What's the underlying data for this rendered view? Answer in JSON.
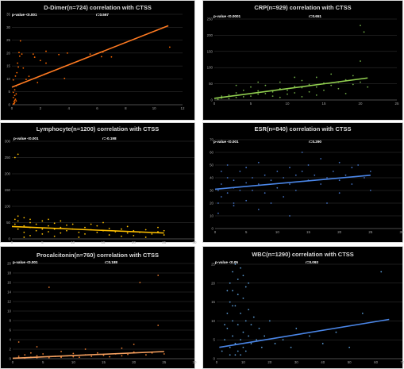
{
  "chart_data": [
    {
      "type": "scatter",
      "title": "D-Dimer(n=724) correlation with CTSS",
      "p_value": "p-value <0.001",
      "r_value": "r=0.567",
      "xlim": [
        0,
        12
      ],
      "ylim": [
        0,
        35
      ],
      "xticks": [
        0,
        2,
        4,
        6,
        8,
        10,
        12
      ],
      "yticks": [
        0,
        5,
        10,
        15,
        20,
        25,
        30,
        35
      ],
      "grid": true,
      "point_color": "#ff6a00",
      "trend_color": "#ff7a21",
      "trendline": {
        "x": [
          0,
          11
        ],
        "y": [
          6.8,
          30.6
        ]
      },
      "points": [
        [
          0.1,
          0.3
        ],
        [
          0.15,
          1.2
        ],
        [
          0.2,
          0.8
        ],
        [
          0.25,
          2.1
        ],
        [
          0.3,
          1.5
        ],
        [
          0.1,
          2.8
        ],
        [
          0.2,
          3.6
        ],
        [
          0.3,
          4.2
        ],
        [
          0.2,
          5.8
        ],
        [
          0.3,
          7.3
        ],
        [
          0.1,
          9.6
        ],
        [
          0.25,
          11.1
        ],
        [
          0.35,
          12.4
        ],
        [
          0.4,
          16.1
        ],
        [
          0.5,
          20.2
        ],
        [
          0.6,
          24.7
        ],
        [
          0.7,
          19.6
        ],
        [
          0.8,
          14.2
        ],
        [
          1.0,
          9.8
        ],
        [
          1.2,
          11.0
        ],
        [
          1.5,
          19.6
        ],
        [
          1.6,
          18.4
        ],
        [
          1.8,
          8.6
        ],
        [
          2.3,
          11.8
        ],
        [
          2.4,
          16.1
        ],
        [
          0.15,
          0.4
        ],
        [
          0.2,
          1.7
        ],
        [
          0.1,
          4.8
        ],
        [
          3.3,
          19.4
        ],
        [
          3.7,
          10.2
        ],
        [
          3.9,
          20.0
        ],
        [
          5.5,
          19.6
        ],
        [
          6.3,
          18.6
        ],
        [
          6.4,
          20.4
        ],
        [
          7.0,
          18.5
        ],
        [
          11.1,
          22.3
        ],
        [
          0.45,
          14.6
        ],
        [
          0.55,
          18.8
        ],
        [
          2.0,
          17.1
        ],
        [
          2.4,
          20.7
        ]
      ]
    },
    {
      "type": "scatter",
      "title": "CRP(n=929) correlation with CTSS",
      "p_value": "p-value <0.0001",
      "r_value": "r=0.651",
      "xlim": [
        0,
        25
      ],
      "ylim": [
        0,
        250
      ],
      "xticks": [
        0,
        5,
        10,
        15,
        20,
        25
      ],
      "yticks": [
        0,
        50,
        100,
        150,
        200,
        250
      ],
      "grid": true,
      "point_color": "#70ad47",
      "trend_color": "#92d050",
      "trendline": {
        "x": [
          0,
          21
        ],
        "y": [
          5,
          68
        ]
      },
      "points": [
        [
          0.5,
          2
        ],
        [
          1,
          6
        ],
        [
          1,
          12
        ],
        [
          2,
          4
        ],
        [
          2,
          15
        ],
        [
          3,
          8
        ],
        [
          3,
          22
        ],
        [
          4,
          10
        ],
        [
          4,
          30
        ],
        [
          5,
          12
        ],
        [
          5,
          40
        ],
        [
          6,
          18
        ],
        [
          6,
          28
        ],
        [
          7,
          20
        ],
        [
          7,
          45
        ],
        [
          8,
          25
        ],
        [
          8,
          12
        ],
        [
          9,
          35
        ],
        [
          9,
          55
        ],
        [
          10,
          30
        ],
        [
          10,
          18
        ],
        [
          11,
          42
        ],
        [
          11,
          22
        ],
        [
          12,
          38
        ],
        [
          12,
          60
        ],
        [
          13,
          25
        ],
        [
          13,
          48
        ],
        [
          14,
          40
        ],
        [
          14,
          70
        ],
        [
          15,
          30
        ],
        [
          15,
          52
        ],
        [
          16,
          45
        ],
        [
          17,
          55
        ],
        [
          17,
          35
        ],
        [
          18,
          62
        ],
        [
          19,
          48
        ],
        [
          19,
          75
        ],
        [
          20,
          120
        ],
        [
          20,
          55
        ],
        [
          20,
          230
        ],
        [
          21,
          40
        ],
        [
          20.5,
          210
        ],
        [
          16,
          80
        ],
        [
          11,
          70
        ],
        [
          12,
          10
        ],
        [
          6,
          55
        ],
        [
          9,
          8
        ],
        [
          3,
          45
        ],
        [
          14,
          15
        ],
        [
          18,
          20
        ]
      ]
    },
    {
      "type": "scatter",
      "title": "Lymphocyte(n=1200) correlation with CTSS",
      "p_value": "p-value <0.001",
      "r_value": "r=-0.198",
      "xlim": [
        0,
        30
      ],
      "ylim": [
        0,
        300
      ],
      "xticks": [
        0,
        5,
        10,
        15,
        20,
        25,
        30
      ],
      "yticks": [
        0,
        50,
        100,
        150,
        200,
        250,
        300
      ],
      "grid": true,
      "point_color": "#ffc000",
      "trend_color": "#ffc000",
      "trendline": {
        "x": [
          0,
          25
        ],
        "y": [
          38,
          18
        ]
      },
      "points": [
        [
          0.5,
          60
        ],
        [
          0.5,
          45
        ],
        [
          1,
          70
        ],
        [
          1,
          30
        ],
        [
          1,
          55
        ],
        [
          2,
          40
        ],
        [
          2,
          65
        ],
        [
          2,
          20
        ],
        [
          3,
          50
        ],
        [
          3,
          35
        ],
        [
          3,
          60
        ],
        [
          4,
          25
        ],
        [
          4,
          45
        ],
        [
          5,
          55
        ],
        [
          5,
          30
        ],
        [
          5,
          15
        ],
        [
          6,
          40
        ],
        [
          6,
          22
        ],
        [
          7,
          48
        ],
        [
          7,
          30
        ],
        [
          8,
          35
        ],
        [
          8,
          18
        ],
        [
          9,
          42
        ],
        [
          9,
          25
        ],
        [
          10,
          30
        ],
        [
          10,
          45
        ],
        [
          11,
          20
        ],
        [
          12,
          35
        ],
        [
          12,
          15
        ],
        [
          13,
          28
        ],
        [
          14,
          40
        ],
        [
          14,
          20
        ],
        [
          15,
          25
        ],
        [
          16,
          32
        ],
        [
          16,
          12
        ],
        [
          17,
          22
        ],
        [
          18,
          30
        ],
        [
          19,
          18
        ],
        [
          20,
          25
        ],
        [
          20,
          10
        ],
        [
          21,
          20
        ],
        [
          22,
          28
        ],
        [
          23,
          15
        ],
        [
          24,
          22
        ],
        [
          25,
          12
        ],
        [
          25,
          25
        ],
        [
          1,
          260
        ],
        [
          0.5,
          250
        ],
        [
          8,
          55
        ],
        [
          15,
          50
        ],
        [
          3,
          10
        ],
        [
          7,
          8
        ],
        [
          11,
          5
        ],
        [
          18,
          8
        ],
        [
          22,
          5
        ],
        [
          2,
          5
        ],
        [
          6,
          60
        ],
        [
          13,
          45
        ],
        [
          19,
          38
        ],
        [
          24,
          35
        ]
      ]
    },
    {
      "type": "scatter",
      "title": "ESR(n=840) correlation with CTSS",
      "p_value": "p-value <0.001",
      "r_value": "r=0.290",
      "xlim": [
        0,
        30
      ],
      "ylim": [
        0,
        70
      ],
      "xticks": [
        0,
        5,
        10,
        15,
        20,
        25,
        30
      ],
      "yticks": [
        0,
        10,
        20,
        30,
        40,
        50,
        60,
        70
      ],
      "grid": true,
      "point_color": "#4472c4",
      "trend_color": "#4a86e8",
      "trendline": {
        "x": [
          0,
          25
        ],
        "y": [
          31,
          42
        ]
      },
      "points": [
        [
          0.5,
          30
        ],
        [
          0.5,
          20
        ],
        [
          1,
          35
        ],
        [
          1,
          45
        ],
        [
          1,
          25
        ],
        [
          2,
          40
        ],
        [
          2,
          28
        ],
        [
          2,
          50
        ],
        [
          3,
          32
        ],
        [
          3,
          20
        ],
        [
          3,
          38
        ],
        [
          4,
          45
        ],
        [
          4,
          30
        ],
        [
          5,
          36
        ],
        [
          5,
          22
        ],
        [
          5,
          48
        ],
        [
          6,
          40
        ],
        [
          6,
          30
        ],
        [
          7,
          35
        ],
        [
          7,
          52
        ],
        [
          8,
          28
        ],
        [
          8,
          42
        ],
        [
          9,
          38
        ],
        [
          9,
          20
        ],
        [
          10,
          45
        ],
        [
          10,
          32
        ],
        [
          11,
          40
        ],
        [
          11,
          25
        ],
        [
          12,
          48
        ],
        [
          12,
          35
        ],
        [
          13,
          42
        ],
        [
          13,
          30
        ],
        [
          14,
          45
        ],
        [
          14,
          60
        ],
        [
          15,
          38
        ],
        [
          15,
          50
        ],
        [
          16,
          42
        ],
        [
          17,
          35
        ],
        [
          17,
          55
        ],
        [
          18,
          40
        ],
        [
          18,
          20
        ],
        [
          19,
          45
        ],
        [
          20,
          38
        ],
        [
          20,
          52
        ],
        [
          21,
          42
        ],
        [
          22,
          48
        ],
        [
          22,
          35
        ],
        [
          23,
          50
        ],
        [
          24,
          40
        ],
        [
          25,
          45
        ],
        [
          25,
          30
        ],
        [
          0.5,
          12
        ],
        [
          3,
          18
        ],
        [
          7,
          15
        ],
        [
          12,
          10
        ],
        [
          20,
          28
        ]
      ]
    },
    {
      "type": "scatter",
      "title": "Procalcitonin(n=760) correlation with CTSS",
      "p_value": "p-value <0.001",
      "r_value": "r=0.188",
      "xlim": [
        0,
        30
      ],
      "ylim": [
        0,
        20
      ],
      "xticks": [
        0,
        5,
        10,
        15,
        20,
        25,
        30
      ],
      "yticks": [
        0,
        2,
        4,
        6,
        8,
        10,
        12,
        14,
        16,
        18,
        20
      ],
      "grid": true,
      "point_color": "#ed7d31",
      "trend_color": "#f4a060",
      "trendline": {
        "x": [
          0,
          25
        ],
        "y": [
          0.1,
          1.5
        ]
      },
      "points": [
        [
          0.5,
          0.1
        ],
        [
          1,
          0.2
        ],
        [
          1,
          0.5
        ],
        [
          2,
          0.1
        ],
        [
          2,
          0.8
        ],
        [
          3,
          0.3
        ],
        [
          3,
          1.2
        ],
        [
          4,
          0.2
        ],
        [
          4,
          0.6
        ],
        [
          5,
          0.4
        ],
        [
          5,
          1.0
        ],
        [
          6,
          0.2
        ],
        [
          7,
          0.5
        ],
        [
          8,
          0.3
        ],
        [
          8,
          1.5
        ],
        [
          9,
          0.6
        ],
        [
          10,
          0.4
        ],
        [
          10,
          1.1
        ],
        [
          11,
          0.3
        ],
        [
          12,
          0.8
        ],
        [
          13,
          0.5
        ],
        [
          14,
          1.2
        ],
        [
          15,
          0.7
        ],
        [
          16,
          0.4
        ],
        [
          17,
          1.0
        ],
        [
          18,
          0.6
        ],
        [
          19,
          0.9
        ],
        [
          20,
          1.4
        ],
        [
          20,
          3.0
        ],
        [
          21,
          16.0
        ],
        [
          22,
          0.8
        ],
        [
          23,
          1.2
        ],
        [
          24,
          7.0
        ],
        [
          24,
          17.5
        ],
        [
          25,
          1.0
        ],
        [
          6,
          15.0
        ],
        [
          1,
          3.5
        ],
        [
          4,
          2.5
        ],
        [
          12,
          2.0
        ],
        [
          18,
          2.2
        ]
      ]
    },
    {
      "type": "scatter",
      "title": "WBC(n=1290) correlation with CTSS",
      "p_value": "p-value <0.05",
      "r_value": "r=0.093",
      "xlim": [
        0,
        70
      ],
      "ylim": [
        0,
        25
      ],
      "xticks": [
        0,
        10,
        20,
        30,
        40,
        50,
        60,
        70
      ],
      "yticks": [
        0,
        5,
        10,
        15,
        20,
        25
      ],
      "grid": true,
      "point_color": "#5b9bd5",
      "trend_color": "#4a86e8",
      "trendline": {
        "x": [
          1,
          65
        ],
        "y": [
          3.0,
          10.4
        ]
      },
      "points": [
        [
          2,
          2
        ],
        [
          3,
          5
        ],
        [
          4,
          8
        ],
        [
          4,
          12
        ],
        [
          5,
          3
        ],
        [
          5,
          15
        ],
        [
          5,
          20
        ],
        [
          6,
          6
        ],
        [
          6,
          10
        ],
        [
          6,
          18
        ],
        [
          6,
          23
        ],
        [
          7,
          4
        ],
        [
          7,
          14
        ],
        [
          7,
          25
        ],
        [
          8,
          2
        ],
        [
          8,
          9
        ],
        [
          8,
          17
        ],
        [
          8,
          21
        ],
        [
          9,
          5
        ],
        [
          9,
          12
        ],
        [
          9,
          24
        ],
        [
          10,
          7
        ],
        [
          10,
          16
        ],
        [
          10,
          3
        ],
        [
          11,
          10
        ],
        [
          11,
          19
        ],
        [
          12,
          6
        ],
        [
          12,
          13
        ],
        [
          13,
          4
        ],
        [
          13,
          9
        ],
        [
          14,
          11
        ],
        [
          15,
          5
        ],
        [
          16,
          8
        ],
        [
          17,
          3
        ],
        [
          18,
          6
        ],
        [
          20,
          10
        ],
        [
          22,
          4
        ],
        [
          25,
          5
        ],
        [
          28,
          3
        ],
        [
          30,
          8
        ],
        [
          35,
          6
        ],
        [
          40,
          4
        ],
        [
          45,
          7
        ],
        [
          50,
          3
        ],
        [
          55,
          12
        ],
        [
          62,
          23
        ],
        [
          5,
          1
        ],
        [
          7,
          1
        ],
        [
          9,
          1
        ],
        [
          11,
          2
        ],
        [
          3,
          9
        ],
        [
          4,
          18
        ],
        [
          6,
          14
        ],
        [
          10,
          22
        ],
        [
          12,
          20
        ]
      ]
    }
  ]
}
